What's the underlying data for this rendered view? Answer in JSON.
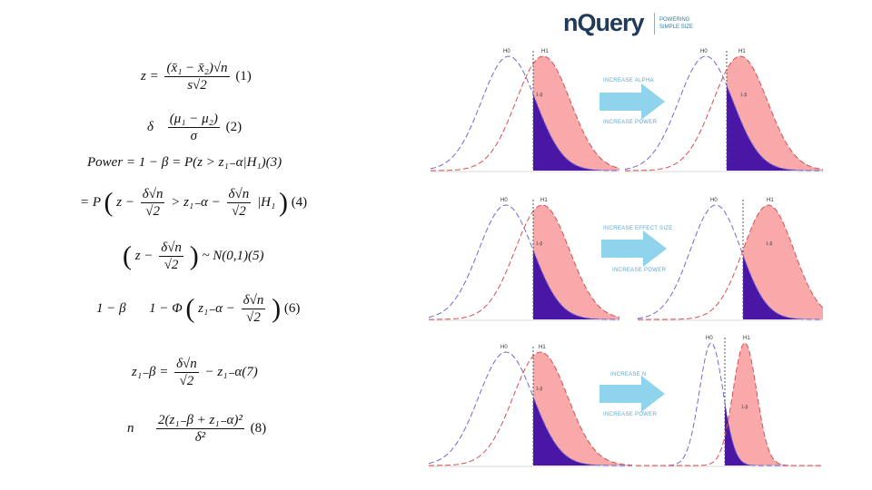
{
  "logo": {
    "word": "nQuery",
    "tagline_1": "POWERING",
    "tagline_2": "SIMPLE SIZE"
  },
  "equations": {
    "eq1_lhs": "z =",
    "eq1_num": "(x̄₁ − x̄₂)√n",
    "eq1_den": "s√2",
    "eq1_tag": "(1)",
    "eq2_lhs": "δ",
    "eq2_num": "(μ₁ − μ₂)",
    "eq2_den": "σ",
    "eq2_tag": "(2)",
    "eq3": "Power = 1 − β = P(z > z₁₋α|H₁)(3)",
    "eq4_lhs": "= P",
    "eq4_a": "z −",
    "eq4_num1": "δ√n",
    "eq4_den1": "√2",
    "eq4_b": "> z₁₋α −",
    "eq4_num2": "δ√n",
    "eq4_den2": "√2",
    "eq4_c": "|H₁",
    "eq4_tag": "(4)",
    "eq5_a": "z −",
    "eq5_num": "δ√n",
    "eq5_den": "√2",
    "eq5_b": "~ N(0,1)(5)",
    "eq6_lhs": "1 − β",
    "eq6_a": "1 − Φ",
    "eq6_b": "z₁₋α −",
    "eq6_num": "δ√n",
    "eq6_den": "√2",
    "eq6_tag": "(6)",
    "eq7_lhs": "z₁₋β =",
    "eq7_num": "δ√n",
    "eq7_den": "√2",
    "eq7_b": "− z₁₋α(7)",
    "eq8_lhs": "n",
    "eq8_num": "2(z₁₋β + z₁₋α)²",
    "eq8_den": "δ²",
    "eq8_tag": "(8)"
  },
  "panels": {
    "h0": "H0",
    "h1": "H1",
    "power_label": "1-β",
    "row1_arrow_top": "INCREASE ALPHA",
    "row1_arrow_bottom": "INCREASE POWER",
    "row2_arrow_top": "INCREASE EFFECT SIZE",
    "row2_arrow_bottom": "INCREASE POWER",
    "row3_arrow_top": "INCREASE N",
    "row3_arrow_bottom": "INCREASE POWER"
  },
  "colors": {
    "h0_curve": "#6b6bd8",
    "h1_curve": "#d85050",
    "power_fill": "#f9a9a9",
    "beta_fill": "#4a16a6",
    "arrow": "#8fd3ec",
    "threshold": "#555555"
  }
}
